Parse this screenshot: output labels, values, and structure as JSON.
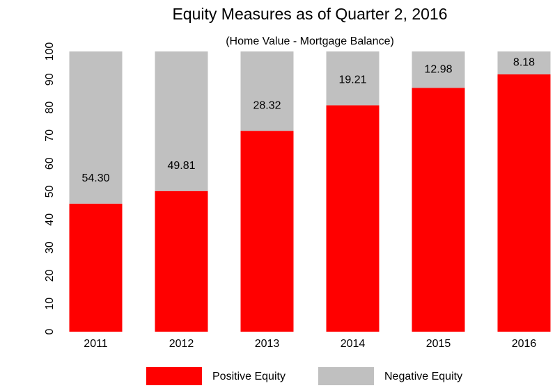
{
  "chart_data": {
    "type": "stacked_bar",
    "title": "Equity Measures as of Quarter 2, 2016",
    "subtitle": "(Home Value - Mortgage Balance)",
    "categories": [
      "2011",
      "2012",
      "2013",
      "2014",
      "2015",
      "2016"
    ],
    "series": [
      {
        "name": "Positive Equity",
        "color": "#ff0000",
        "values": [
          45.7,
          50.19,
          71.68,
          80.79,
          87.02,
          91.82
        ]
      },
      {
        "name": "Negative Equity",
        "color": "#c0c0c0",
        "values": [
          54.3,
          49.81,
          28.32,
          19.21,
          12.98,
          8.18
        ],
        "value_labels": [
          "54.30",
          "49.81",
          "28.32",
          "19.21",
          "12.98",
          "8.18"
        ]
      }
    ],
    "ylim": [
      0,
      100
    ],
    "yticks": [
      0,
      10,
      20,
      30,
      40,
      50,
      60,
      70,
      80,
      90,
      100
    ],
    "legend": "bottom"
  }
}
